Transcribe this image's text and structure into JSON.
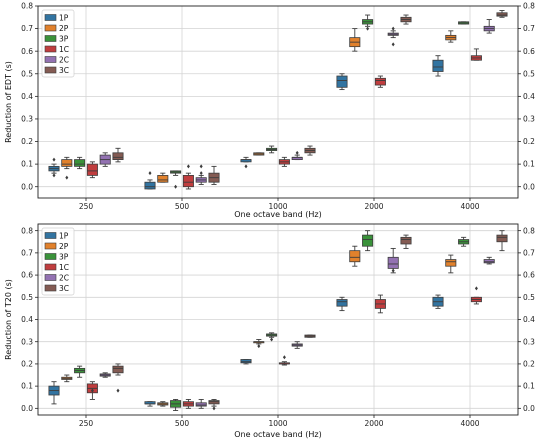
{
  "chart_data": [
    {
      "type": "box",
      "xlabel": "One octave band (Hz)",
      "ylabel": "Reduction of EDT (s)",
      "categories": [
        "250",
        "500",
        "1000",
        "2000",
        "4000"
      ],
      "ylim": [
        -0.05,
        0.8
      ],
      "yticks": [
        0.0,
        0.1,
        0.2,
        0.3,
        0.4,
        0.5,
        0.6,
        0.7,
        0.8
      ],
      "ytick_labels": [
        "0.0",
        "0.1",
        "0.2",
        "0.3",
        "0.4",
        "0.5",
        "0.6",
        "0.7",
        "0.8"
      ],
      "legend_position": "top-left",
      "grid": true,
      "series": [
        {
          "name": "1P",
          "color": "#3274a1",
          "boxes": [
            {
              "min": 0.06,
              "q1": 0.07,
              "median": 0.08,
              "q3": 0.09,
              "max": 0.1,
              "outliers": [
                0.05,
                0.12
              ]
            },
            {
              "min": -0.01,
              "q1": -0.01,
              "median": 0.0,
              "q3": 0.02,
              "max": 0.03,
              "outliers": [
                0.06
              ]
            },
            {
              "min": 0.11,
              "q1": 0.11,
              "median": 0.12,
              "q3": 0.12,
              "max": 0.13,
              "outliers": [
                0.09
              ]
            },
            {
              "min": 0.43,
              "q1": 0.44,
              "median": 0.47,
              "q3": 0.49,
              "max": 0.5,
              "outliers": []
            },
            {
              "min": 0.49,
              "q1": 0.51,
              "median": 0.53,
              "q3": 0.56,
              "max": 0.58,
              "outliers": []
            }
          ]
        },
        {
          "name": "2P",
          "color": "#e1812c",
          "boxes": [
            {
              "min": 0.08,
              "q1": 0.09,
              "median": 0.1,
              "q3": 0.12,
              "max": 0.13,
              "outliers": [
                0.04
              ]
            },
            {
              "min": 0.02,
              "q1": 0.02,
              "median": 0.03,
              "q3": 0.05,
              "max": 0.06,
              "outliers": []
            },
            {
              "min": 0.14,
              "q1": 0.14,
              "median": 0.145,
              "q3": 0.15,
              "max": 0.15,
              "outliers": []
            },
            {
              "min": 0.6,
              "q1": 0.62,
              "median": 0.64,
              "q3": 0.66,
              "max": 0.7,
              "outliers": []
            },
            {
              "min": 0.64,
              "q1": 0.65,
              "median": 0.66,
              "q3": 0.67,
              "max": 0.69,
              "outliers": []
            }
          ]
        },
        {
          "name": "3P",
          "color": "#3a923a",
          "boxes": [
            {
              "min": 0.08,
              "q1": 0.09,
              "median": 0.1,
              "q3": 0.12,
              "max": 0.13,
              "outliers": []
            },
            {
              "min": 0.05,
              "q1": 0.06,
              "median": 0.065,
              "q3": 0.07,
              "max": 0.07,
              "outliers": [
                0.0
              ]
            },
            {
              "min": 0.15,
              "q1": 0.16,
              "median": 0.165,
              "q3": 0.17,
              "max": 0.18,
              "outliers": []
            },
            {
              "min": 0.71,
              "q1": 0.72,
              "median": 0.73,
              "q3": 0.74,
              "max": 0.76,
              "outliers": [
                0.7
              ]
            },
            {
              "min": 0.72,
              "q1": 0.72,
              "median": 0.725,
              "q3": 0.73,
              "max": 0.73,
              "outliers": []
            }
          ]
        },
        {
          "name": "1C",
          "color": "#c03d3e",
          "boxes": [
            {
              "min": 0.04,
              "q1": 0.05,
              "median": 0.07,
              "q3": 0.1,
              "max": 0.11,
              "outliers": []
            },
            {
              "min": -0.01,
              "q1": 0.0,
              "median": 0.02,
              "q3": 0.05,
              "max": 0.06,
              "outliers": [
                0.09
              ]
            },
            {
              "min": 0.09,
              "q1": 0.1,
              "median": 0.11,
              "q3": 0.12,
              "max": 0.13,
              "outliers": []
            },
            {
              "min": 0.44,
              "q1": 0.45,
              "median": 0.47,
              "q3": 0.48,
              "max": 0.49,
              "outliers": []
            },
            {
              "min": 0.56,
              "q1": 0.56,
              "median": 0.57,
              "q3": 0.58,
              "max": 0.61,
              "outliers": []
            }
          ]
        },
        {
          "name": "2C",
          "color": "#9372b2",
          "boxes": [
            {
              "min": 0.09,
              "q1": 0.1,
              "median": 0.12,
              "q3": 0.14,
              "max": 0.15,
              "outliers": []
            },
            {
              "min": 0.01,
              "q1": 0.02,
              "median": 0.03,
              "q3": 0.04,
              "max": 0.05,
              "outliers": [
                0.09,
                0.06
              ]
            },
            {
              "min": 0.12,
              "q1": 0.12,
              "median": 0.13,
              "q3": 0.13,
              "max": 0.14,
              "outliers": [
                0.15
              ]
            },
            {
              "min": 0.66,
              "q1": 0.67,
              "median": 0.675,
              "q3": 0.68,
              "max": 0.69,
              "outliers": [
                0.7,
                0.63
              ]
            },
            {
              "min": 0.68,
              "q1": 0.69,
              "median": 0.7,
              "q3": 0.71,
              "max": 0.74,
              "outliers": []
            }
          ]
        },
        {
          "name": "3C",
          "color": "#845b53",
          "boxes": [
            {
              "min": 0.11,
              "q1": 0.12,
              "median": 0.13,
              "q3": 0.15,
              "max": 0.17,
              "outliers": []
            },
            {
              "min": 0.01,
              "q1": 0.02,
              "median": 0.04,
              "q3": 0.06,
              "max": 0.09,
              "outliers": []
            },
            {
              "min": 0.14,
              "q1": 0.15,
              "median": 0.16,
              "q3": 0.17,
              "max": 0.18,
              "outliers": []
            },
            {
              "min": 0.72,
              "q1": 0.73,
              "median": 0.74,
              "q3": 0.75,
              "max": 0.76,
              "outliers": []
            },
            {
              "min": 0.75,
              "q1": 0.755,
              "median": 0.76,
              "q3": 0.77,
              "max": 0.78,
              "outliers": []
            }
          ]
        }
      ]
    },
    {
      "type": "box",
      "xlabel": "One octave band (Hz)",
      "ylabel": "Reduction of T20 (s)",
      "categories": [
        "250",
        "500",
        "1000",
        "2000",
        "4000"
      ],
      "ylim": [
        -0.03,
        0.83
      ],
      "yticks": [
        0.0,
        0.1,
        0.2,
        0.3,
        0.4,
        0.5,
        0.6,
        0.7,
        0.8
      ],
      "ytick_labels": [
        "0.0",
        "0.1",
        "0.2",
        "0.3",
        "0.4",
        "0.5",
        "0.6",
        "0.7",
        "0.8"
      ],
      "legend_position": "top-left",
      "grid": true,
      "series": [
        {
          "name": "1P",
          "color": "#3274a1",
          "boxes": [
            {
              "min": 0.02,
              "q1": 0.06,
              "median": 0.08,
              "q3": 0.1,
              "max": 0.12,
              "outliers": []
            },
            {
              "min": 0.01,
              "q1": 0.02,
              "median": 0.02,
              "q3": 0.03,
              "max": 0.03,
              "outliers": []
            },
            {
              "min": 0.2,
              "q1": 0.205,
              "median": 0.21,
              "q3": 0.22,
              "max": 0.22,
              "outliers": []
            },
            {
              "min": 0.44,
              "q1": 0.46,
              "median": 0.48,
              "q3": 0.49,
              "max": 0.5,
              "outliers": []
            },
            {
              "min": 0.45,
              "q1": 0.46,
              "median": 0.48,
              "q3": 0.5,
              "max": 0.51,
              "outliers": []
            }
          ]
        },
        {
          "name": "2P",
          "color": "#e1812c",
          "boxes": [
            {
              "min": 0.12,
              "q1": 0.13,
              "median": 0.135,
              "q3": 0.14,
              "max": 0.15,
              "outliers": []
            },
            {
              "min": 0.01,
              "q1": 0.015,
              "median": 0.02,
              "q3": 0.025,
              "max": 0.03,
              "outliers": []
            },
            {
              "min": 0.29,
              "q1": 0.295,
              "median": 0.3,
              "q3": 0.3,
              "max": 0.31,
              "outliers": [
                0.28
              ]
            },
            {
              "min": 0.64,
              "q1": 0.66,
              "median": 0.68,
              "q3": 0.71,
              "max": 0.73,
              "outliers": []
            },
            {
              "min": 0.61,
              "q1": 0.64,
              "median": 0.66,
              "q3": 0.67,
              "max": 0.69,
              "outliers": []
            }
          ]
        },
        {
          "name": "3P",
          "color": "#3a923a",
          "boxes": [
            {
              "min": 0.14,
              "q1": 0.16,
              "median": 0.17,
              "q3": 0.18,
              "max": 0.19,
              "outliers": []
            },
            {
              "min": -0.01,
              "q1": 0.005,
              "median": 0.02,
              "q3": 0.035,
              "max": 0.04,
              "outliers": []
            },
            {
              "min": 0.32,
              "q1": 0.325,
              "median": 0.33,
              "q3": 0.335,
              "max": 0.34,
              "outliers": [
                0.31
              ]
            },
            {
              "min": 0.71,
              "q1": 0.73,
              "median": 0.76,
              "q3": 0.78,
              "max": 0.8,
              "outliers": []
            },
            {
              "min": 0.73,
              "q1": 0.74,
              "median": 0.75,
              "q3": 0.76,
              "max": 0.77,
              "outliers": []
            }
          ]
        },
        {
          "name": "1C",
          "color": "#c03d3e",
          "boxes": [
            {
              "min": 0.04,
              "q1": 0.07,
              "median": 0.09,
              "q3": 0.11,
              "max": 0.12,
              "outliers": [
                0.08
              ]
            },
            {
              "min": 0.0,
              "q1": 0.01,
              "median": 0.02,
              "q3": 0.03,
              "max": 0.04,
              "outliers": []
            },
            {
              "min": 0.195,
              "q1": 0.2,
              "median": 0.2,
              "q3": 0.205,
              "max": 0.21,
              "outliers": [
                0.23
              ]
            },
            {
              "min": 0.43,
              "q1": 0.45,
              "median": 0.47,
              "q3": 0.49,
              "max": 0.51,
              "outliers": []
            },
            {
              "min": 0.47,
              "q1": 0.48,
              "median": 0.49,
              "q3": 0.5,
              "max": 0.5,
              "outliers": [
                0.54
              ]
            }
          ]
        },
        {
          "name": "2C",
          "color": "#9372b2",
          "boxes": [
            {
              "min": 0.14,
              "q1": 0.145,
              "median": 0.15,
              "q3": 0.155,
              "max": 0.16,
              "outliers": []
            },
            {
              "min": 0.0,
              "q1": 0.01,
              "median": 0.015,
              "q3": 0.025,
              "max": 0.04,
              "outliers": []
            },
            {
              "min": 0.27,
              "q1": 0.28,
              "median": 0.285,
              "q3": 0.29,
              "max": 0.3,
              "outliers": []
            },
            {
              "min": 0.61,
              "q1": 0.63,
              "median": 0.65,
              "q3": 0.68,
              "max": 0.72,
              "outliers": [
                0.62
              ]
            },
            {
              "min": 0.65,
              "q1": 0.655,
              "median": 0.66,
              "q3": 0.67,
              "max": 0.68,
              "outliers": []
            }
          ]
        },
        {
          "name": "3C",
          "color": "#845b53",
          "boxes": [
            {
              "min": 0.15,
              "q1": 0.16,
              "median": 0.18,
              "q3": 0.19,
              "max": 0.2,
              "outliers": [
                0.08
              ]
            },
            {
              "min": 0.01,
              "q1": 0.02,
              "median": 0.03,
              "q3": 0.035,
              "max": 0.04,
              "outliers": [
                0.0
              ]
            },
            {
              "min": 0.32,
              "q1": 0.32,
              "median": 0.325,
              "q3": 0.33,
              "max": 0.33,
              "outliers": []
            },
            {
              "min": 0.72,
              "q1": 0.74,
              "median": 0.76,
              "q3": 0.77,
              "max": 0.78,
              "outliers": []
            },
            {
              "min": 0.71,
              "q1": 0.75,
              "median": 0.77,
              "q3": 0.78,
              "max": 0.8,
              "outliers": []
            }
          ]
        }
      ]
    }
  ]
}
